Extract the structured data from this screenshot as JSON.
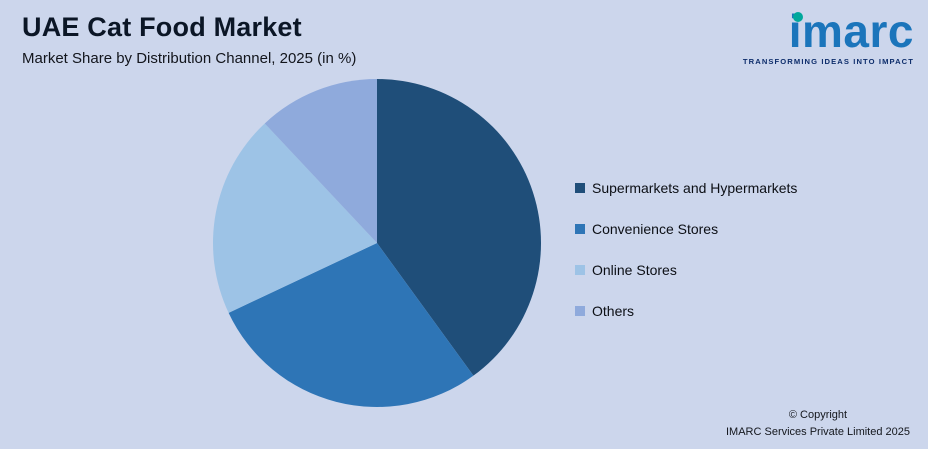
{
  "header": {
    "title": "UAE Cat Food Market",
    "subtitle": "Market Share by Distribution Channel, 2025 (in %)"
  },
  "logo": {
    "wordmark": "imarc",
    "tagline": "TRANSFORMING IDEAS INTO IMPACT",
    "wordmark_color": "#1b75bb",
    "dot_color": "#00a89c"
  },
  "chart_data": {
    "type": "pie",
    "title": "UAE Cat Food Market",
    "subtitle": "Market Share by Distribution Channel, 2025 (in %)",
    "categories": [
      "Supermarkets and Hypermarkets",
      "Convenience Stores",
      "Online Stores",
      "Others"
    ],
    "values": [
      40,
      28,
      20,
      12
    ],
    "unit": "%",
    "colors": [
      "#1f4e79",
      "#2e75b6",
      "#9dc3e6",
      "#8faadc"
    ],
    "start_angle_deg": 0,
    "direction": "clockwise",
    "legend_position": "right",
    "data_labels": false
  },
  "footer": {
    "copyright_line1": "© Copyright",
    "copyright_line2": "IMARC Services Private Limited 2025"
  },
  "colors": {
    "background": "#ccd6ec"
  }
}
